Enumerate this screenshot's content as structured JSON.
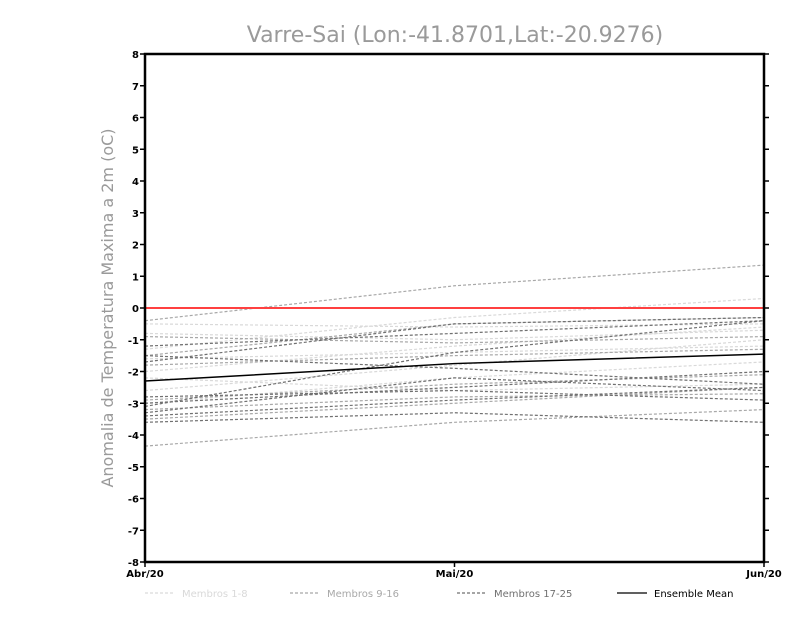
{
  "chart_data": {
    "type": "line",
    "title": "Varre-Sai (Lon:-41.8701,Lat:-20.9276)",
    "ylabel": "Anomalia de Temperatura Maxima a 2m (oC)",
    "xlabel": "",
    "categories": [
      "Abr/20",
      "Mai/20",
      "Jun/20"
    ],
    "ylim": [
      -8,
      8
    ],
    "yticks": [
      "8",
      "7",
      "6",
      "5",
      "4",
      "3",
      "2",
      "1",
      "0",
      "-1",
      "-2",
      "-3",
      "-4",
      "-5",
      "-6",
      "-7",
      "-8"
    ],
    "yticks_values": [
      8,
      7,
      6,
      5,
      4,
      3,
      2,
      1,
      0,
      -1,
      -2,
      -3,
      -4,
      -5,
      -6,
      -7,
      -8
    ],
    "reference_line": {
      "value": 0,
      "color": "#ff4040"
    },
    "grid": false,
    "legend_position": "bottom",
    "legend": [
      {
        "label": "Membros 1-8",
        "color": "#d9d9d9",
        "style": "dashed"
      },
      {
        "label": "Membros 9-16",
        "color": "#a8a8a8",
        "style": "dashed"
      },
      {
        "label": "Membros 17-25",
        "color": "#707070",
        "style": "dashed"
      },
      {
        "label": "Ensemble Mean",
        "color": "#000000",
        "style": "solid"
      }
    ],
    "series": [
      {
        "group": 0,
        "values": [
          -0.5,
          -0.6,
          -0.5
        ]
      },
      {
        "group": 0,
        "values": [
          -1.3,
          -0.3,
          0.3
        ]
      },
      {
        "group": 0,
        "values": [
          -2.0,
          -1.2,
          -0.6
        ]
      },
      {
        "group": 0,
        "values": [
          -2.6,
          -1.8,
          -1.0
        ]
      },
      {
        "group": 0,
        "values": [
          -3.0,
          -2.2,
          -1.7
        ]
      },
      {
        "group": 0,
        "values": [
          -1.6,
          -1.4,
          -1.2
        ]
      },
      {
        "group": 0,
        "values": [
          -2.2,
          -2.6,
          -2.4
        ]
      },
      {
        "group": 0,
        "values": [
          -0.8,
          -1.0,
          -0.7
        ]
      },
      {
        "group": 1,
        "values": [
          -0.4,
          0.7,
          1.35
        ]
      },
      {
        "group": 1,
        "values": [
          -4.35,
          -3.6,
          -3.2
        ]
      },
      {
        "group": 1,
        "values": [
          -1.5,
          -0.5,
          -0.3
        ]
      },
      {
        "group": 1,
        "values": [
          -3.5,
          -3.0,
          -2.5
        ]
      },
      {
        "group": 1,
        "values": [
          -2.9,
          -2.4,
          -2.1
        ]
      },
      {
        "group": 1,
        "values": [
          -0.9,
          -1.1,
          -0.9
        ]
      },
      {
        "group": 1,
        "values": [
          -3.2,
          -2.8,
          -2.7
        ]
      },
      {
        "group": 1,
        "values": [
          -1.8,
          -1.5,
          -1.3
        ]
      },
      {
        "group": 2,
        "values": [
          -1.7,
          -0.5,
          -0.3
        ]
      },
      {
        "group": 2,
        "values": [
          -3.1,
          -1.4,
          -0.4
        ]
      },
      {
        "group": 2,
        "values": [
          -3.6,
          -3.3,
          -3.6
        ]
      },
      {
        "group": 2,
        "values": [
          -2.8,
          -2.6,
          -2.9
        ]
      },
      {
        "group": 2,
        "values": [
          -3.0,
          -2.5,
          -2.0
        ]
      },
      {
        "group": 2,
        "values": [
          -1.5,
          -1.9,
          -2.4
        ]
      },
      {
        "group": 2,
        "values": [
          -3.4,
          -2.9,
          -2.5
        ]
      },
      {
        "group": 2,
        "values": [
          -1.2,
          -0.8,
          -0.4
        ]
      },
      {
        "group": 2,
        "values": [
          -3.3,
          -2.2,
          -2.6
        ]
      },
      {
        "group": 3,
        "values": [
          -2.3,
          -1.75,
          -1.45
        ]
      }
    ]
  }
}
